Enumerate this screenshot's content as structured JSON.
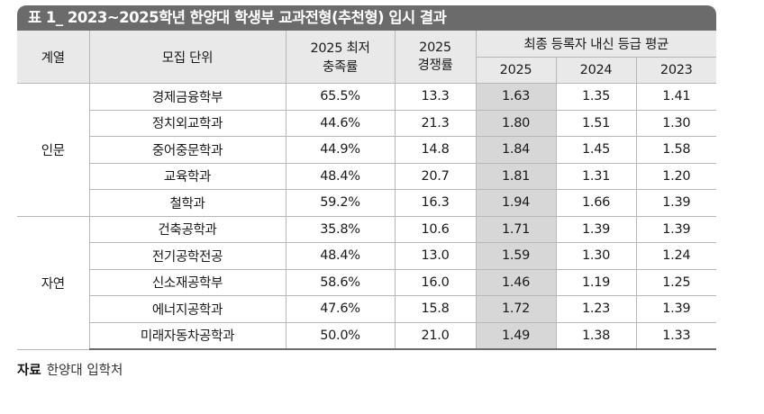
{
  "title": "표 1_ 2023~2025학년 한양대 학생부 교과전형(추천형) 입시 결과",
  "headers": {
    "category": "계열",
    "unit": "모집 단위",
    "rate_line1": "2025 최저",
    "rate_line2": "충족률",
    "comp_line1": "2025",
    "comp_line2": "경쟁률",
    "grade_group": "최종 등록자 내신 등급 평균",
    "year_2025": "2025",
    "year_2024": "2024",
    "year_2023": "2023"
  },
  "groups": [
    {
      "name": "인문",
      "rows": [
        {
          "unit": "경제금융학부",
          "rate": "65.5%",
          "comp": "13.3",
          "g2025": "1.63",
          "g2024": "1.35",
          "g2023": "1.41"
        },
        {
          "unit": "정치외교학과",
          "rate": "44.6%",
          "comp": "21.3",
          "g2025": "1.80",
          "g2024": "1.51",
          "g2023": "1.30"
        },
        {
          "unit": "중어중문학과",
          "rate": "44.9%",
          "comp": "14.8",
          "g2025": "1.84",
          "g2024": "1.45",
          "g2023": "1.58"
        },
        {
          "unit": "교육학과",
          "rate": "48.4%",
          "comp": "20.7",
          "g2025": "1.81",
          "g2024": "1.31",
          "g2023": "1.20"
        },
        {
          "unit": "철학과",
          "rate": "59.2%",
          "comp": "16.3",
          "g2025": "1.94",
          "g2024": "1.66",
          "g2023": "1.39"
        }
      ]
    },
    {
      "name": "자연",
      "rows": [
        {
          "unit": "건축공학과",
          "rate": "35.8%",
          "comp": "10.6",
          "g2025": "1.71",
          "g2024": "1.39",
          "g2023": "1.39"
        },
        {
          "unit": "전기공학전공",
          "rate": "48.4%",
          "comp": "13.0",
          "g2025": "1.59",
          "g2024": "1.30",
          "g2023": "1.24"
        },
        {
          "unit": "신소재공학부",
          "rate": "58.6%",
          "comp": "16.0",
          "g2025": "1.46",
          "g2024": "1.19",
          "g2023": "1.25"
        },
        {
          "unit": "에너지공학과",
          "rate": "47.6%",
          "comp": "15.8",
          "g2025": "1.72",
          "g2024": "1.23",
          "g2023": "1.39"
        },
        {
          "unit": "미래자동차공학과",
          "rate": "50.0%",
          "comp": "21.0",
          "g2025": "1.49",
          "g2024": "1.38",
          "g2023": "1.33"
        }
      ]
    }
  ],
  "source": {
    "label": "자료",
    "text": "한양대 입학처"
  }
}
